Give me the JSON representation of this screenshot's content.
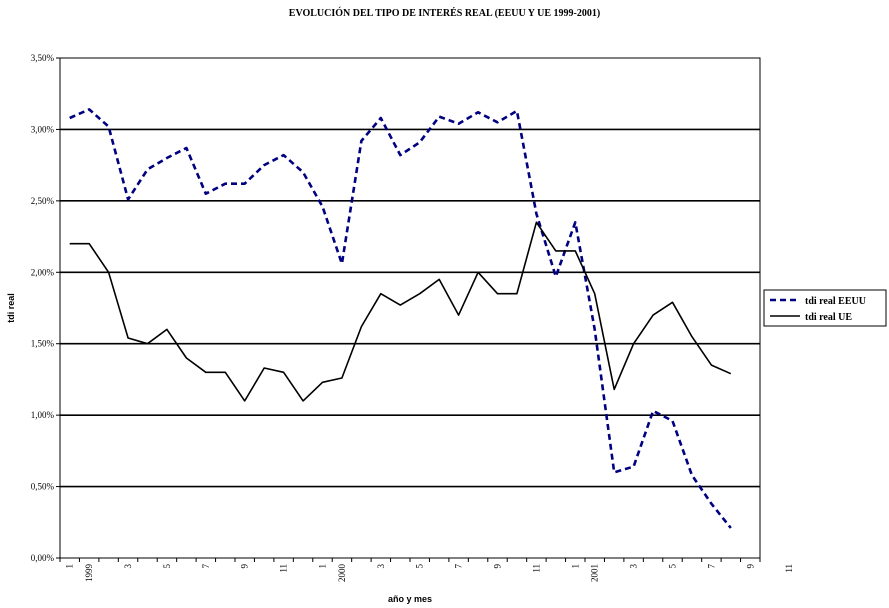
{
  "chart_data": {
    "type": "line",
    "title": "EVOLUCIÓN DEL TIPO DE INTERÉS REAL (EEUU Y UE 1999-2001)",
    "xlabel": "año y mes",
    "ylabel": "tdi real",
    "ylim": [
      0,
      0.035
    ],
    "yticks": [
      "0,00%",
      "0,50%",
      "1,00%",
      "1,50%",
      "2,00%",
      "2,50%",
      "3,00%",
      "3,50%"
    ],
    "x_tick_labels": [
      {
        "index": 0,
        "label": "1"
      },
      {
        "index": 1,
        "label": "1999"
      },
      {
        "index": 3,
        "label": "3"
      },
      {
        "index": 5,
        "label": "5"
      },
      {
        "index": 7,
        "label": "7"
      },
      {
        "index": 9,
        "label": "9"
      },
      {
        "index": 11,
        "label": "11"
      },
      {
        "index": 13,
        "label": "1"
      },
      {
        "index": 14,
        "label": "2000"
      },
      {
        "index": 16,
        "label": "3"
      },
      {
        "index": 18,
        "label": "5"
      },
      {
        "index": 20,
        "label": "7"
      },
      {
        "index": 22,
        "label": "9"
      },
      {
        "index": 24,
        "label": "11"
      },
      {
        "index": 26,
        "label": "1"
      },
      {
        "index": 27,
        "label": "2001"
      },
      {
        "index": 29,
        "label": "3"
      },
      {
        "index": 31,
        "label": "5"
      },
      {
        "index": 33,
        "label": "7"
      },
      {
        "index": 35,
        "label": "9"
      },
      {
        "index": 37,
        "label": "11"
      }
    ],
    "grid": "horizontal",
    "legend_position": "right",
    "series": [
      {
        "name": "tdi real EEUU",
        "color": "#000080",
        "style": "dashed",
        "values": [
          0.0308,
          0.0314,
          0.0302,
          0.0251,
          0.0272,
          0.028,
          0.0287,
          0.0255,
          0.0262,
          0.0262,
          0.0275,
          0.0282,
          0.027,
          0.0246,
          0.0206,
          0.0292,
          0.0308,
          0.0282,
          0.0291,
          0.0309,
          0.0304,
          0.0312,
          0.0305,
          0.0313,
          0.0241,
          0.0197,
          0.0235,
          0.016,
          0.006,
          0.0064,
          0.0103,
          0.0096,
          0.0058,
          0.0038,
          0.0021
        ]
      },
      {
        "name": "tdi real UE",
        "color": "#000000",
        "style": "solid",
        "values": [
          0.022,
          0.022,
          0.02,
          0.0154,
          0.015,
          0.016,
          0.014,
          0.013,
          0.013,
          0.011,
          0.0133,
          0.013,
          0.011,
          0.0123,
          0.0126,
          0.0162,
          0.0185,
          0.0177,
          0.0185,
          0.0195,
          0.017,
          0.02,
          0.0185,
          0.0185,
          0.0235,
          0.0215,
          0.0215,
          0.0185,
          0.0118,
          0.015,
          0.017,
          0.0179,
          0.0155,
          0.0135,
          0.0129
        ]
      }
    ]
  }
}
